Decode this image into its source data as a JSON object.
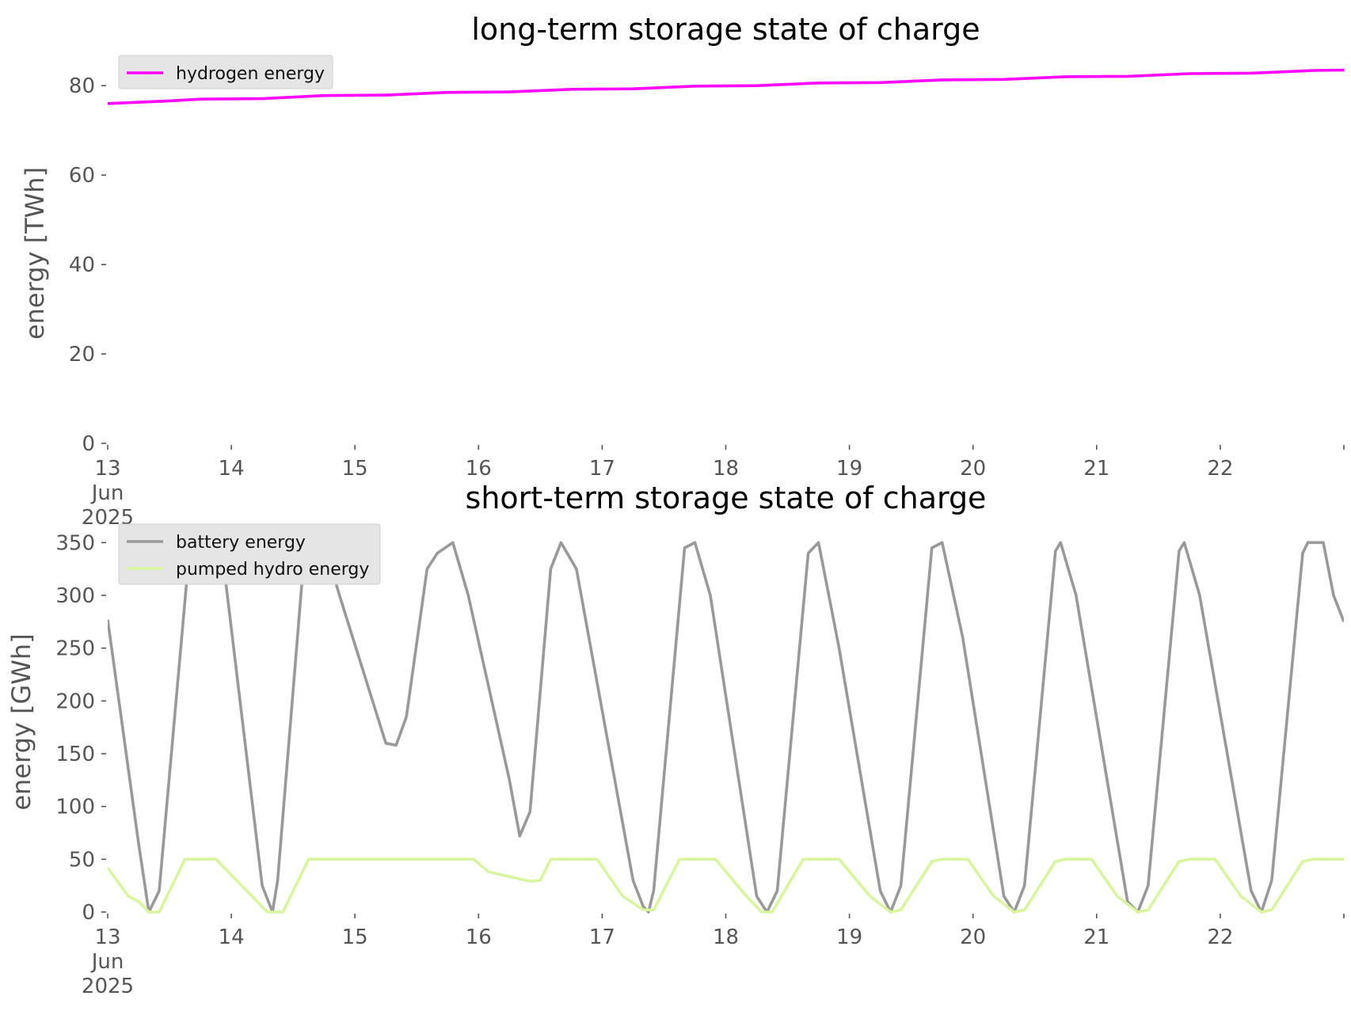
{
  "chart_data": [
    {
      "type": "line",
      "title": "long-term storage state of charge",
      "ylabel": "energy [TWh]",
      "ylim": [
        0,
        85
      ],
      "yticks": [
        0,
        20,
        40,
        60,
        80
      ],
      "xlim": [
        "2025-06-13",
        "2025-06-23"
      ],
      "xtick_labels": [
        {
          "x": "2025-06-13",
          "lines": [
            "13",
            "Jun",
            "2025"
          ]
        },
        {
          "x": "2025-06-14",
          "lines": [
            "14"
          ]
        },
        {
          "x": "2025-06-15",
          "lines": [
            "15"
          ]
        },
        {
          "x": "2025-06-16",
          "lines": [
            "16"
          ]
        },
        {
          "x": "2025-06-17",
          "lines": [
            "17"
          ]
        },
        {
          "x": "2025-06-18",
          "lines": [
            "18"
          ]
        },
        {
          "x": "2025-06-19",
          "lines": [
            "19"
          ]
        },
        {
          "x": "2025-06-20",
          "lines": [
            "20"
          ]
        },
        {
          "x": "2025-06-21",
          "lines": [
            "21"
          ]
        },
        {
          "x": "2025-06-22",
          "lines": [
            "22"
          ]
        }
      ],
      "grid": false,
      "legend_position": "top-left",
      "series": [
        {
          "name": "hydrogen energy",
          "color": "#ff00ff",
          "points": [
            [
              "2025-06-13 00:00",
              76.0
            ],
            [
              "2025-06-13 12:00",
              76.6
            ],
            [
              "2025-06-13 18:00",
              77.0
            ],
            [
              "2025-06-14 06:00",
              77.1
            ],
            [
              "2025-06-14 18:00",
              77.8
            ],
            [
              "2025-06-15 06:00",
              77.9
            ],
            [
              "2025-06-15 18:00",
              78.5
            ],
            [
              "2025-06-16 06:00",
              78.6
            ],
            [
              "2025-06-16 18:00",
              79.2
            ],
            [
              "2025-06-17 06:00",
              79.3
            ],
            [
              "2025-06-17 18:00",
              79.9
            ],
            [
              "2025-06-18 06:00",
              80.0
            ],
            [
              "2025-06-18 18:00",
              80.6
            ],
            [
              "2025-06-19 06:00",
              80.7
            ],
            [
              "2025-06-19 18:00",
              81.3
            ],
            [
              "2025-06-20 06:00",
              81.4
            ],
            [
              "2025-06-20 18:00",
              82.0
            ],
            [
              "2025-06-21 06:00",
              82.1
            ],
            [
              "2025-06-21 18:00",
              82.7
            ],
            [
              "2025-06-22 06:00",
              82.8
            ],
            [
              "2025-06-22 18:00",
              83.4
            ],
            [
              "2025-06-23 00:00",
              83.5
            ]
          ]
        }
      ]
    },
    {
      "type": "line",
      "title": "short-term storage state of charge",
      "ylabel": "energy [GWh]",
      "ylim": [
        0,
        360
      ],
      "yticks": [
        0,
        50,
        100,
        150,
        200,
        250,
        300,
        350
      ],
      "xlim": [
        "2025-06-13",
        "2025-06-23"
      ],
      "xtick_labels": [
        {
          "x": "2025-06-13",
          "lines": [
            "13",
            "Jun",
            "2025"
          ]
        },
        {
          "x": "2025-06-14",
          "lines": [
            "14"
          ]
        },
        {
          "x": "2025-06-15",
          "lines": [
            "15"
          ]
        },
        {
          "x": "2025-06-16",
          "lines": [
            "16"
          ]
        },
        {
          "x": "2025-06-17",
          "lines": [
            "17"
          ]
        },
        {
          "x": "2025-06-18",
          "lines": [
            "18"
          ]
        },
        {
          "x": "2025-06-19",
          "lines": [
            "19"
          ]
        },
        {
          "x": "2025-06-20",
          "lines": [
            "20"
          ]
        },
        {
          "x": "2025-06-21",
          "lines": [
            "21"
          ]
        },
        {
          "x": "2025-06-22",
          "lines": [
            "22"
          ]
        }
      ],
      "grid": false,
      "legend_position": "top-left",
      "series": [
        {
          "name": "battery energy",
          "color": "#999999",
          "points": [
            [
              "2025-06-13 00:00",
              277
            ],
            [
              "2025-06-13 06:00",
              65
            ],
            [
              "2025-06-13 08:00",
              0
            ],
            [
              "2025-06-13 10:00",
              20
            ],
            [
              "2025-06-13 16:00",
              350
            ],
            [
              "2025-06-13 22:00",
              350
            ],
            [
              "2025-06-14 06:00",
              25
            ],
            [
              "2025-06-14 08:00",
              0
            ],
            [
              "2025-06-14 09:00",
              30
            ],
            [
              "2025-06-14 14:00",
              330
            ],
            [
              "2025-06-14 16:00",
              350
            ],
            [
              "2025-06-14 18:00",
              350
            ],
            [
              "2025-06-14 21:00",
              300
            ],
            [
              "2025-06-15 06:00",
              160
            ],
            [
              "2025-06-15 08:00",
              158
            ],
            [
              "2025-06-15 10:00",
              185
            ],
            [
              "2025-06-15 14:00",
              325
            ],
            [
              "2025-06-15 16:00",
              340
            ],
            [
              "2025-06-15 19:00",
              350
            ],
            [
              "2025-06-15 22:00",
              300
            ],
            [
              "2025-06-16 06:00",
              125
            ],
            [
              "2025-06-16 08:00",
              72
            ],
            [
              "2025-06-16 10:00",
              95
            ],
            [
              "2025-06-16 14:00",
              325
            ],
            [
              "2025-06-16 16:00",
              350
            ],
            [
              "2025-06-16 19:00",
              325
            ],
            [
              "2025-06-17 06:00",
              30
            ],
            [
              "2025-06-17 08:00",
              5
            ],
            [
              "2025-06-17 09:00",
              0
            ],
            [
              "2025-06-17 10:00",
              20
            ],
            [
              "2025-06-17 16:00",
              345
            ],
            [
              "2025-06-17 18:00",
              350
            ],
            [
              "2025-06-17 21:00",
              300
            ],
            [
              "2025-06-18 06:00",
              15
            ],
            [
              "2025-06-18 08:00",
              0
            ],
            [
              "2025-06-18 10:00",
              20
            ],
            [
              "2025-06-18 16:00",
              340
            ],
            [
              "2025-06-18 18:00",
              350
            ],
            [
              "2025-06-18 22:00",
              250
            ],
            [
              "2025-06-19 06:00",
              20
            ],
            [
              "2025-06-19 08:00",
              0
            ],
            [
              "2025-06-19 10:00",
              25
            ],
            [
              "2025-06-19 16:00",
              345
            ],
            [
              "2025-06-19 18:00",
              350
            ],
            [
              "2025-06-19 22:00",
              260
            ],
            [
              "2025-06-20 06:00",
              15
            ],
            [
              "2025-06-20 08:00",
              0
            ],
            [
              "2025-06-20 10:00",
              25
            ],
            [
              "2025-06-20 16:00",
              342
            ],
            [
              "2025-06-20 17:00",
              350
            ],
            [
              "2025-06-20 20:00",
              300
            ],
            [
              "2025-06-21 06:00",
              10
            ],
            [
              "2025-06-21 08:00",
              0
            ],
            [
              "2025-06-21 10:00",
              25
            ],
            [
              "2025-06-21 16:00",
              342
            ],
            [
              "2025-06-21 17:00",
              350
            ],
            [
              "2025-06-21 20:00",
              300
            ],
            [
              "2025-06-22 06:00",
              20
            ],
            [
              "2025-06-22 08:00",
              0
            ],
            [
              "2025-06-22 10:00",
              30
            ],
            [
              "2025-06-22 16:00",
              340
            ],
            [
              "2025-06-22 17:00",
              350
            ],
            [
              "2025-06-22 20:00",
              350
            ],
            [
              "2025-06-22 22:00",
              300
            ],
            [
              "2025-06-23 00:00",
              275
            ]
          ]
        },
        {
          "name": "pumped hydro energy",
          "color": "#d9f59d",
          "points": [
            [
              "2025-06-13 00:00",
              42
            ],
            [
              "2025-06-13 04:00",
              15
            ],
            [
              "2025-06-13 06:00",
              10
            ],
            [
              "2025-06-13 08:00",
              0
            ],
            [
              "2025-06-13 10:00",
              0
            ],
            [
              "2025-06-13 15:00",
              50
            ],
            [
              "2025-06-13 21:00",
              50
            ],
            [
              "2025-06-14 04:00",
              15
            ],
            [
              "2025-06-14 07:00",
              0
            ],
            [
              "2025-06-14 10:00",
              0
            ],
            [
              "2025-06-14 15:00",
              50
            ],
            [
              "2025-06-15 23:00",
              50
            ],
            [
              "2025-06-16 02:00",
              38
            ],
            [
              "2025-06-16 10:00",
              29
            ],
            [
              "2025-06-16 12:00",
              30
            ],
            [
              "2025-06-16 14:00",
              50
            ],
            [
              "2025-06-16 23:00",
              50
            ],
            [
              "2025-06-17 04:00",
              15
            ],
            [
              "2025-06-17 08:00",
              2
            ],
            [
              "2025-06-17 10:00",
              2
            ],
            [
              "2025-06-17 15:00",
              50
            ],
            [
              "2025-06-17 22:00",
              50
            ],
            [
              "2025-06-18 04:00",
              15
            ],
            [
              "2025-06-18 07:00",
              0
            ],
            [
              "2025-06-18 09:00",
              0
            ],
            [
              "2025-06-18 15:00",
              50
            ],
            [
              "2025-06-18 22:00",
              50
            ],
            [
              "2025-06-19 04:00",
              15
            ],
            [
              "2025-06-19 08:00",
              0
            ],
            [
              "2025-06-19 10:00",
              2
            ],
            [
              "2025-06-19 16:00",
              48
            ],
            [
              "2025-06-19 18:00",
              50
            ],
            [
              "2025-06-19 23:00",
              50
            ],
            [
              "2025-06-20 04:00",
              15
            ],
            [
              "2025-06-20 08:00",
              0
            ],
            [
              "2025-06-20 10:00",
              2
            ],
            [
              "2025-06-20 16:00",
              48
            ],
            [
              "2025-06-20 18:00",
              50
            ],
            [
              "2025-06-20 23:00",
              50
            ],
            [
              "2025-06-21 04:00",
              15
            ],
            [
              "2025-06-21 08:00",
              0
            ],
            [
              "2025-06-21 10:00",
              2
            ],
            [
              "2025-06-21 16:00",
              48
            ],
            [
              "2025-06-21 18:00",
              50
            ],
            [
              "2025-06-21 23:00",
              50
            ],
            [
              "2025-06-22 04:00",
              15
            ],
            [
              "2025-06-22 08:00",
              0
            ],
            [
              "2025-06-22 10:00",
              2
            ],
            [
              "2025-06-22 16:00",
              48
            ],
            [
              "2025-06-22 18:00",
              50
            ],
            [
              "2025-06-23 00:00",
              50
            ]
          ]
        }
      ]
    }
  ]
}
